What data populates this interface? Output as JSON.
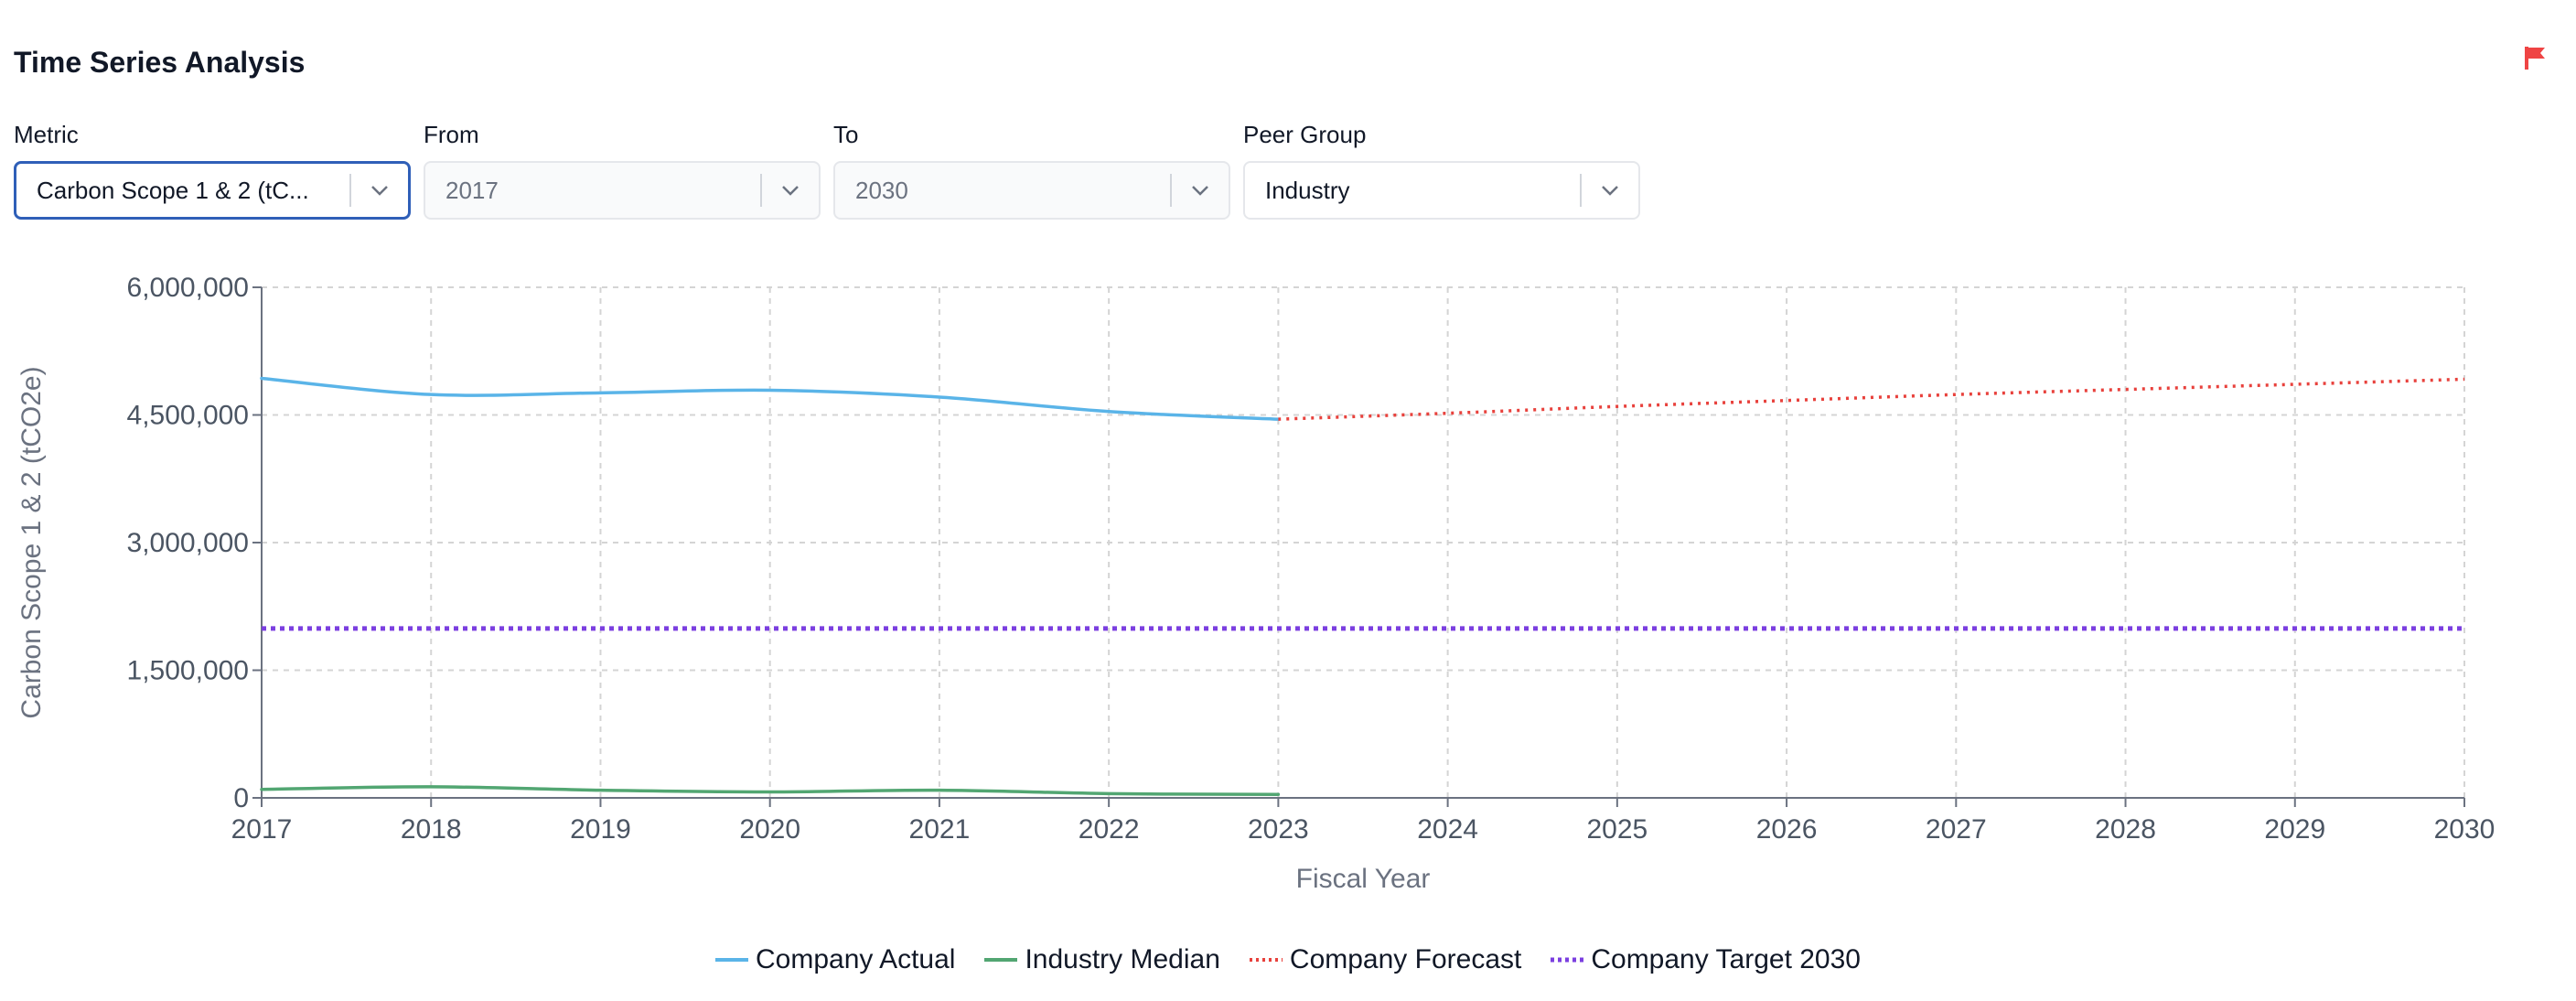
{
  "header": {
    "title": "Time Series Analysis",
    "flag_icon": "flag-icon",
    "flag_color": "#ef4444"
  },
  "controls": {
    "metric": {
      "label": "Metric",
      "value": "Carbon Scope 1 & 2 (tC..."
    },
    "from": {
      "label": "From",
      "value": "2017"
    },
    "to": {
      "label": "To",
      "value": "2030"
    },
    "peer": {
      "label": "Peer Group",
      "value": "Industry"
    }
  },
  "chart_data": {
    "type": "line",
    "xlabel": "Fiscal Year",
    "ylabel": "Carbon Scope 1 & 2 (tCO2e)",
    "ylim": [
      0,
      6000000
    ],
    "xlim": [
      2017,
      2030
    ],
    "yticks": [
      0,
      1500000,
      3000000,
      4500000,
      6000000
    ],
    "ytick_labels": [
      "0",
      "1,500,000",
      "3,000,000",
      "4,500,000",
      "6,000,000"
    ],
    "xticks": [
      2017,
      2018,
      2019,
      2020,
      2021,
      2022,
      2023,
      2024,
      2025,
      2026,
      2027,
      2028,
      2029,
      2030
    ],
    "xtick_labels": [
      "2017",
      "2018",
      "2019",
      "2020",
      "2021",
      "2022",
      "2023",
      "2024",
      "2025",
      "2026",
      "2027",
      "2028",
      "2029",
      "2030"
    ],
    "grid": true,
    "legend_position": "bottom-center",
    "series": [
      {
        "name": "Company Actual",
        "color": "#5ab4e8",
        "style": "solid",
        "x": [
          2017,
          2018,
          2019,
          2020,
          2021,
          2022,
          2023
        ],
        "y": [
          4930000,
          4740000,
          4760000,
          4790000,
          4710000,
          4540000,
          4450000
        ]
      },
      {
        "name": "Industry Median",
        "color": "#52a672",
        "style": "solid",
        "x": [
          2017,
          2018,
          2019,
          2020,
          2021,
          2022,
          2023
        ],
        "y": [
          100000,
          130000,
          90000,
          70000,
          90000,
          50000,
          40000
        ]
      },
      {
        "name": "Company Forecast",
        "color": "#e8413c",
        "style": "dotted",
        "x": [
          2023,
          2024,
          2025,
          2026,
          2027,
          2028,
          2029,
          2030
        ],
        "y": [
          4450000,
          4520000,
          4600000,
          4670000,
          4740000,
          4800000,
          4860000,
          4920000
        ]
      },
      {
        "name": "Company Target 2030",
        "color": "#7b3fe0",
        "style": "dotted-bold",
        "x": [
          2017,
          2030
        ],
        "y": [
          1990000,
          1990000
        ]
      }
    ]
  }
}
